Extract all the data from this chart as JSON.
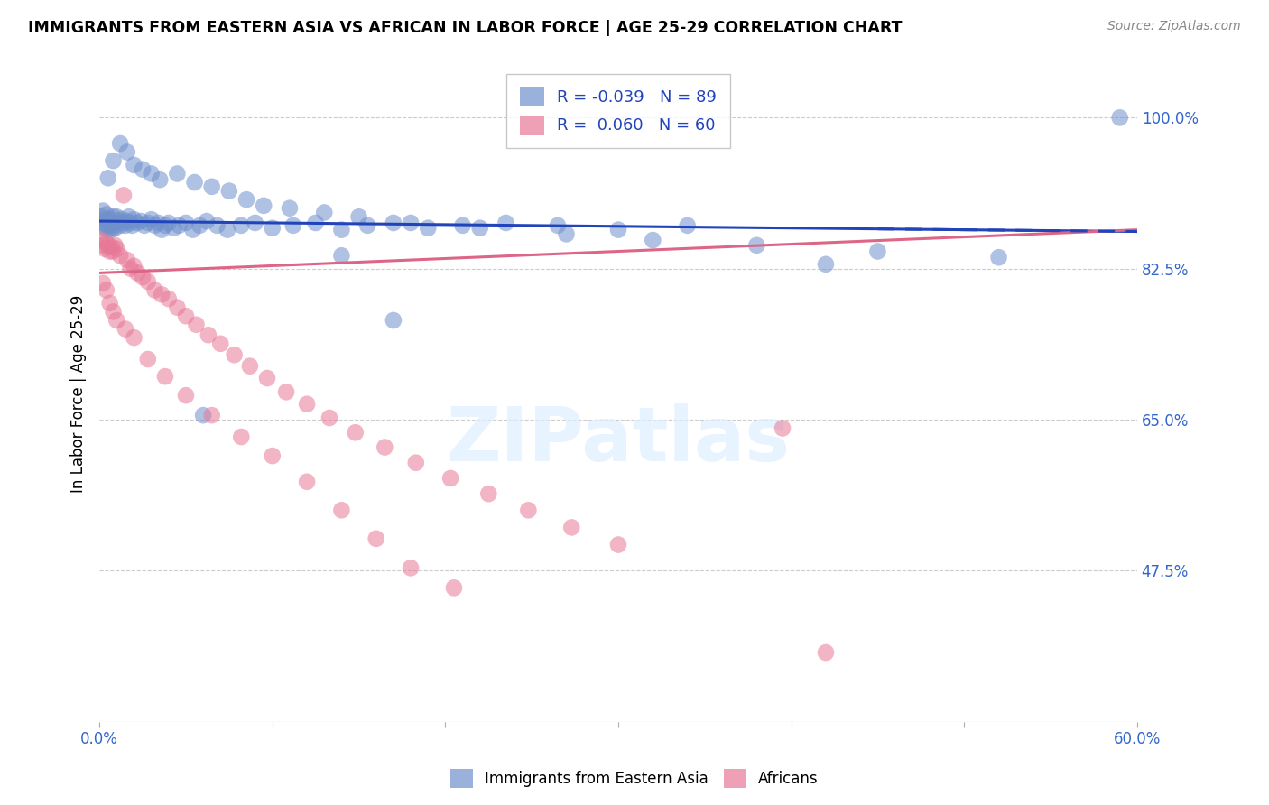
{
  "title": "IMMIGRANTS FROM EASTERN ASIA VS AFRICAN IN LABOR FORCE | AGE 25-29 CORRELATION CHART",
  "source": "Source: ZipAtlas.com",
  "ylabel": "In Labor Force | Age 25-29",
  "xlim": [
    0.0,
    0.6
  ],
  "ylim": [
    0.3,
    1.06
  ],
  "xticks": [
    0.0,
    0.1,
    0.2,
    0.3,
    0.4,
    0.5,
    0.6
  ],
  "xtick_labels": [
    "0.0%",
    "",
    "",
    "",
    "",
    "",
    "60.0%"
  ],
  "yticks": [
    0.475,
    0.65,
    0.825,
    1.0
  ],
  "ytick_labels": [
    "47.5%",
    "65.0%",
    "82.5%",
    "100.0%"
  ],
  "blue_R": -0.039,
  "blue_N": 89,
  "pink_R": 0.06,
  "pink_N": 60,
  "blue_color": "#7090cc",
  "pink_color": "#e87898",
  "trend_blue_color": "#2244bb",
  "trend_pink_color": "#dd6688",
  "blue_trend_x": [
    0.0,
    0.6
  ],
  "blue_trend_y": [
    0.88,
    0.868
  ],
  "pink_trend_x": [
    0.0,
    0.6
  ],
  "pink_trend_y": [
    0.82,
    0.87
  ],
  "blue_scatter_x": [
    0.001,
    0.002,
    0.002,
    0.003,
    0.003,
    0.004,
    0.004,
    0.005,
    0.005,
    0.006,
    0.006,
    0.007,
    0.007,
    0.008,
    0.008,
    0.009,
    0.01,
    0.01,
    0.011,
    0.012,
    0.013,
    0.014,
    0.015,
    0.016,
    0.017,
    0.018,
    0.019,
    0.02,
    0.022,
    0.024,
    0.026,
    0.028,
    0.03,
    0.032,
    0.034,
    0.036,
    0.038,
    0.04,
    0.043,
    0.046,
    0.05,
    0.054,
    0.058,
    0.062,
    0.068,
    0.074,
    0.082,
    0.09,
    0.1,
    0.112,
    0.125,
    0.14,
    0.155,
    0.17,
    0.19,
    0.21,
    0.235,
    0.265,
    0.3,
    0.34,
    0.005,
    0.008,
    0.012,
    0.016,
    0.02,
    0.025,
    0.03,
    0.035,
    0.045,
    0.055,
    0.065,
    0.075,
    0.085,
    0.095,
    0.11,
    0.13,
    0.15,
    0.18,
    0.22,
    0.27,
    0.32,
    0.38,
    0.45,
    0.52,
    0.59,
    0.42,
    0.17,
    0.14,
    0.06
  ],
  "blue_scatter_y": [
    0.885,
    0.878,
    0.892,
    0.872,
    0.882,
    0.875,
    0.888,
    0.87,
    0.88,
    0.875,
    0.882,
    0.87,
    0.878,
    0.875,
    0.885,
    0.872,
    0.878,
    0.885,
    0.88,
    0.875,
    0.882,
    0.878,
    0.875,
    0.88,
    0.885,
    0.878,
    0.875,
    0.882,
    0.878,
    0.88,
    0.875,
    0.878,
    0.882,
    0.875,
    0.878,
    0.87,
    0.875,
    0.878,
    0.872,
    0.875,
    0.878,
    0.87,
    0.875,
    0.88,
    0.875,
    0.87,
    0.875,
    0.878,
    0.872,
    0.875,
    0.878,
    0.87,
    0.875,
    0.878,
    0.872,
    0.875,
    0.878,
    0.875,
    0.87,
    0.875,
    0.93,
    0.95,
    0.97,
    0.96,
    0.945,
    0.94,
    0.935,
    0.928,
    0.935,
    0.925,
    0.92,
    0.915,
    0.905,
    0.898,
    0.895,
    0.89,
    0.885,
    0.878,
    0.872,
    0.865,
    0.858,
    0.852,
    0.845,
    0.838,
    1.0,
    0.83,
    0.765,
    0.84,
    0.655
  ],
  "pink_scatter_x": [
    0.001,
    0.002,
    0.003,
    0.004,
    0.005,
    0.006,
    0.007,
    0.008,
    0.009,
    0.01,
    0.012,
    0.014,
    0.016,
    0.018,
    0.02,
    0.022,
    0.025,
    0.028,
    0.032,
    0.036,
    0.04,
    0.045,
    0.05,
    0.056,
    0.063,
    0.07,
    0.078,
    0.087,
    0.097,
    0.108,
    0.12,
    0.133,
    0.148,
    0.165,
    0.183,
    0.203,
    0.225,
    0.248,
    0.273,
    0.3,
    0.002,
    0.004,
    0.006,
    0.008,
    0.01,
    0.015,
    0.02,
    0.028,
    0.038,
    0.05,
    0.065,
    0.082,
    0.1,
    0.12,
    0.14,
    0.16,
    0.18,
    0.205,
    0.395,
    0.42
  ],
  "pink_scatter_y": [
    0.858,
    0.852,
    0.848,
    0.855,
    0.852,
    0.845,
    0.85,
    0.845,
    0.852,
    0.848,
    0.84,
    0.91,
    0.835,
    0.825,
    0.828,
    0.82,
    0.815,
    0.81,
    0.8,
    0.795,
    0.79,
    0.78,
    0.77,
    0.76,
    0.748,
    0.738,
    0.725,
    0.712,
    0.698,
    0.682,
    0.668,
    0.652,
    0.635,
    0.618,
    0.6,
    0.582,
    0.564,
    0.545,
    0.525,
    0.505,
    0.808,
    0.8,
    0.785,
    0.775,
    0.765,
    0.755,
    0.745,
    0.72,
    0.7,
    0.678,
    0.655,
    0.63,
    0.608,
    0.578,
    0.545,
    0.512,
    0.478,
    0.455,
    0.64,
    0.38
  ]
}
